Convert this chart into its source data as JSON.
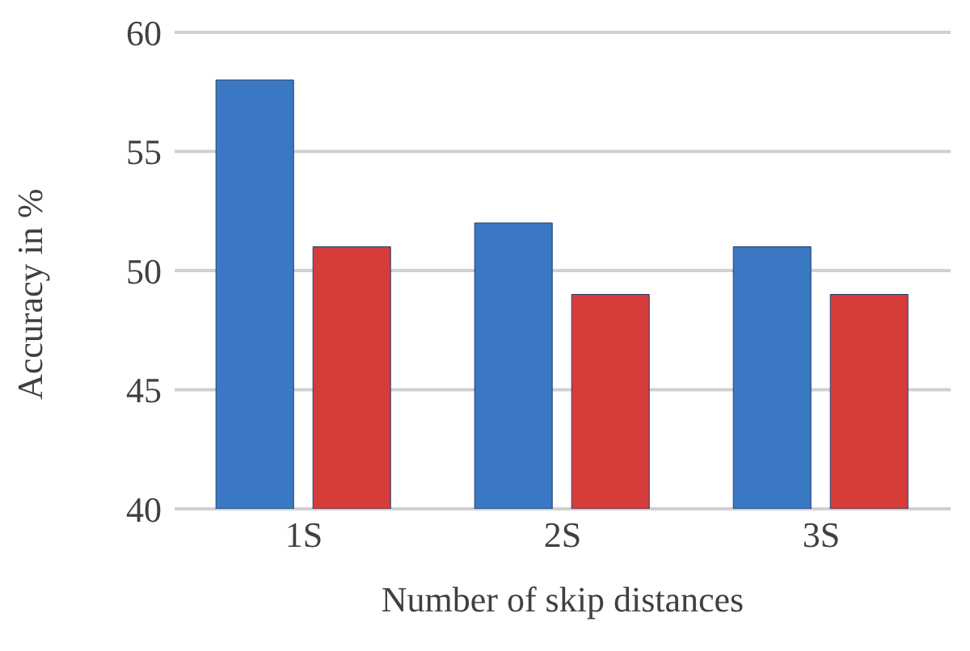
{
  "chart_data": {
    "type": "bar",
    "xlabel": "Number of skip distances",
    "ylabel": "Accuracy in %",
    "categories": [
      "1S",
      "2S",
      "3S"
    ],
    "series": [
      {
        "color": "#3a78c3",
        "values": [
          58,
          52,
          51
        ]
      },
      {
        "color": "#d63c3a",
        "values": [
          51,
          49,
          49
        ]
      }
    ],
    "ylim": [
      40,
      60
    ],
    "yticks": [
      40,
      45,
      50,
      55,
      60
    ],
    "grid": "y"
  }
}
